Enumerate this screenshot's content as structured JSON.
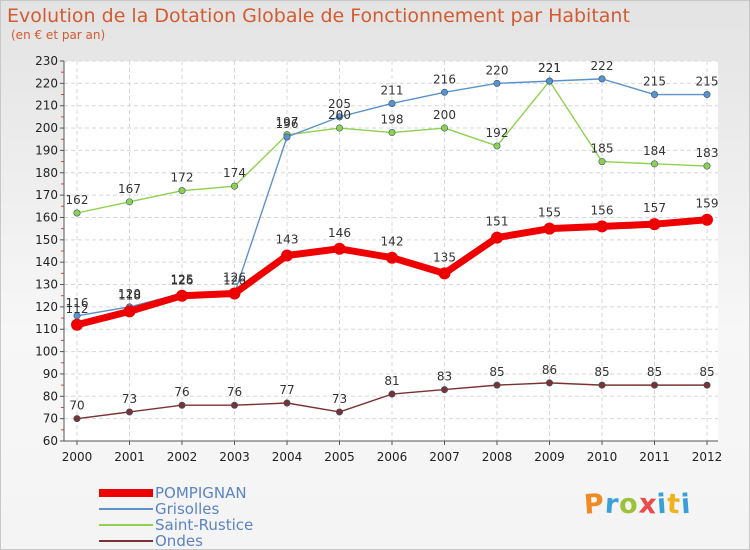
{
  "header": {
    "title": "Evolution de la Dotation Globale de Fonctionnement par Habitant",
    "subtitle": "(en € et par an)"
  },
  "logo": {
    "text": "Proxiti",
    "colors": [
      "#f08a24",
      "#3aa0d8",
      "#9bc23a",
      "#e94a4a",
      "#3aa0d8",
      "#f0b21c",
      "#3aa0d8"
    ]
  },
  "chart_data": {
    "type": "line",
    "x": [
      "2000",
      "2001",
      "2002",
      "2003",
      "2004",
      "2005",
      "2006",
      "2007",
      "2008",
      "2009",
      "2010",
      "2011",
      "2012"
    ],
    "ylim": [
      60,
      230
    ],
    "yticks": [
      60,
      70,
      80,
      90,
      100,
      110,
      120,
      130,
      140,
      150,
      160,
      170,
      180,
      190,
      200,
      210,
      220,
      230
    ],
    "grid": true,
    "legend_position": "bottom-left",
    "series": [
      {
        "name": "POMPIGNAN",
        "color": "#ee0000",
        "values": [
          112,
          118,
          125,
          126,
          143,
          146,
          142,
          135,
          151,
          155,
          156,
          157,
          159
        ]
      },
      {
        "name": "Grisolles",
        "color": "#5b93c9",
        "values": [
          116,
          120,
          126,
          126,
          196,
          205,
          211,
          216,
          220,
          221,
          222,
          215,
          215
        ]
      },
      {
        "name": "Saint-Rustice",
        "color": "#8fd14f",
        "values": [
          162,
          167,
          172,
          174,
          197,
          200,
          198,
          200,
          192,
          221,
          185,
          184,
          183
        ]
      },
      {
        "name": "Ondes",
        "color": "#7a3333",
        "values": [
          70,
          73,
          76,
          76,
          77,
          73,
          81,
          83,
          85,
          86,
          85,
          85,
          85
        ]
      }
    ]
  }
}
